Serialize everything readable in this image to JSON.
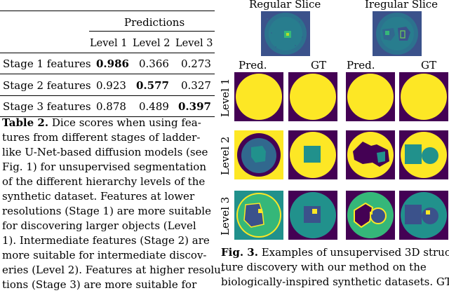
{
  "table": {
    "predictions_header": "Predictions",
    "columns": [
      "Level 1",
      "Level 2",
      "Level 3"
    ],
    "rows": [
      {
        "label": "Stage 1 features",
        "values": [
          "0.986",
          "0.366",
          "0.273"
        ]
      },
      {
        "label": "Stage 2 features",
        "values": [
          "0.923",
          "0.577",
          "0.327"
        ]
      },
      {
        "label": "Stage 3 features",
        "values": [
          "0.878",
          "0.489",
          "0.397"
        ]
      }
    ]
  },
  "table_caption": {
    "lines": [
      {
        "bold": "Table 2.",
        "text": " Dice scores when using fea-"
      },
      {
        "bold": "",
        "text": "tures from different stages of ladder-"
      },
      {
        "bold": "",
        "text": "like U-Net-based diffusion models (see"
      },
      {
        "bold": "",
        "text": "Fig. 1) for unsupervised segmentation"
      },
      {
        "bold": "",
        "text": "of the different hierarchy levels of the"
      },
      {
        "bold": "",
        "text": "synthetic dataset. Features at lower"
      },
      {
        "bold": "",
        "text": "resolutions (Stage 1) are more suitable"
      },
      {
        "bold": "",
        "text": "for discovering larger objects (Level"
      },
      {
        "bold": "",
        "text": "1). Intermediate features (Stage 2) are"
      },
      {
        "bold": "",
        "text": "more suitable for intermediate discov-"
      },
      {
        "bold": "",
        "text": "eries (Level 2). Features at higher resolu-"
      },
      {
        "bold": "",
        "text": "tions (Stage 3) are more suitable for"
      }
    ]
  },
  "figure": {
    "slice_titles": [
      "Regular Slice",
      "Iregular Slice"
    ],
    "col_labels": [
      "Pred.",
      "GT",
      "Pred.",
      "GT"
    ],
    "row_labels": [
      "Level 1",
      "Level 2",
      "Level 3"
    ],
    "colors": {
      "yellow": "#fde725",
      "purple": "#440154",
      "teal": "#21918c",
      "green": "#35b779",
      "blue": "#3b528b"
    }
  },
  "figure_caption": {
    "lines": [
      {
        "bold": "Fig. 3.",
        "text": " Examples of unsupervised 3D struc-"
      },
      {
        "bold": "",
        "text": "ture discovery with our method on the"
      },
      {
        "bold": "",
        "text": "biologically-inspired synthetic datasets. GT"
      }
    ]
  }
}
